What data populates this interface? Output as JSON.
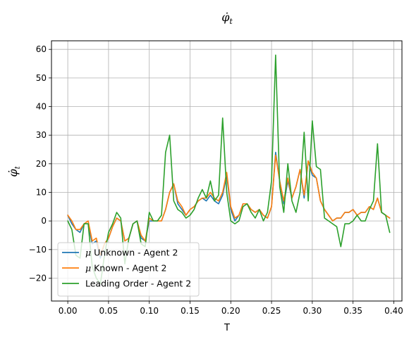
{
  "chart_data": {
    "type": "line",
    "title": "φ̇_t",
    "title_main": "φ̇",
    "title_sub": "t",
    "xlabel": "T",
    "ylabel": "φ̇_t",
    "ylabel_main": "φ̇",
    "ylabel_sub": "t",
    "xlim": [
      -0.02,
      0.41
    ],
    "ylim": [
      -28,
      63
    ],
    "xticks": [
      0.0,
      0.05,
      0.1,
      0.15,
      0.2,
      0.25,
      0.3,
      0.35,
      0.4
    ],
    "xtick_labels": [
      "0.00",
      "0.05",
      "0.10",
      "0.15",
      "0.20",
      "0.25",
      "0.30",
      "0.35",
      "0.40"
    ],
    "yticks": [
      -20,
      -10,
      0,
      10,
      20,
      30,
      40,
      50,
      60
    ],
    "ytick_labels": [
      "−20",
      "−10",
      "0",
      "10",
      "20",
      "30",
      "40",
      "50",
      "60"
    ],
    "grid": true,
    "legend_position": "lower-left",
    "series": [
      {
        "name": "μ Unknown - Agent 2",
        "legend_mu": "μ",
        "legend_rest": " Unknown - Agent 2",
        "color": "#1f77b4",
        "x": [
          0.0,
          0.005,
          0.01,
          0.015,
          0.02,
          0.025,
          0.03,
          0.035,
          0.04,
          0.045,
          0.05,
          0.055,
          0.06,
          0.065,
          0.07,
          0.075,
          0.08,
          0.085,
          0.09,
          0.095,
          0.1,
          0.105,
          0.11,
          0.115,
          0.12,
          0.125,
          0.13,
          0.135,
          0.14,
          0.145,
          0.15,
          0.155,
          0.16,
          0.165,
          0.17,
          0.175,
          0.18,
          0.185,
          0.19,
          0.195,
          0.2,
          0.205,
          0.21,
          0.215,
          0.22,
          0.225,
          0.23,
          0.235,
          0.24,
          0.245,
          0.25,
          0.255,
          0.26,
          0.265,
          0.27,
          0.275,
          0.28,
          0.285,
          0.29,
          0.295,
          0.3,
          0.305,
          0.31,
          0.315,
          0.32,
          0.325,
          0.33,
          0.335,
          0.34,
          0.345,
          0.35,
          0.355,
          0.36,
          0.365,
          0.37,
          0.375,
          0.38,
          0.385,
          0.39,
          0.395
        ],
        "values": [
          2,
          -1,
          -3,
          -4,
          -1,
          -1,
          -8,
          -7,
          -13,
          -8,
          -6,
          -2,
          1,
          0,
          -7,
          -6,
          -1,
          0,
          -6,
          -7,
          0,
          0,
          0,
          0,
          4,
          10,
          13,
          6,
          4,
          2,
          4,
          5,
          7,
          8,
          7,
          9,
          7,
          6,
          9,
          16,
          4,
          0,
          2,
          6,
          6,
          4,
          3,
          4,
          2,
          1,
          5,
          24,
          14,
          6,
          14,
          8,
          12,
          18,
          8,
          21,
          16,
          15,
          7,
          4,
          2,
          0,
          1,
          1,
          3,
          3,
          4,
          2,
          3,
          3,
          5,
          4,
          8,
          3,
          2,
          1
        ]
      },
      {
        "name": "μ Known - Agent 2",
        "legend_mu": "μ",
        "legend_rest": " Known - Agent 2",
        "color": "#ff7f0e",
        "x": [
          0.0,
          0.005,
          0.01,
          0.015,
          0.02,
          0.025,
          0.03,
          0.035,
          0.04,
          0.045,
          0.05,
          0.055,
          0.06,
          0.065,
          0.07,
          0.075,
          0.08,
          0.085,
          0.09,
          0.095,
          0.1,
          0.105,
          0.11,
          0.115,
          0.12,
          0.125,
          0.13,
          0.135,
          0.14,
          0.145,
          0.15,
          0.155,
          0.16,
          0.165,
          0.17,
          0.175,
          0.18,
          0.185,
          0.19,
          0.195,
          0.2,
          0.205,
          0.21,
          0.215,
          0.22,
          0.225,
          0.23,
          0.235,
          0.24,
          0.245,
          0.25,
          0.255,
          0.26,
          0.265,
          0.27,
          0.275,
          0.28,
          0.285,
          0.29,
          0.295,
          0.3,
          0.305,
          0.31,
          0.315,
          0.32,
          0.325,
          0.33,
          0.335,
          0.34,
          0.345,
          0.35,
          0.355,
          0.36,
          0.365,
          0.37,
          0.375,
          0.38,
          0.385,
          0.39,
          0.395
        ],
        "values": [
          2,
          0,
          -3,
          -3,
          -1,
          0,
          -7,
          -6,
          -12,
          -8,
          -6,
          -2,
          1,
          0,
          -7,
          -6,
          -1,
          0,
          -5,
          -7,
          1,
          0,
          0,
          0,
          4,
          10,
          13,
          7,
          5,
          2,
          4,
          5,
          7,
          8,
          8,
          10,
          8,
          7,
          10,
          17,
          5,
          1,
          2,
          6,
          6,
          4,
          3,
          4,
          2,
          1,
          5,
          23,
          14,
          7,
          15,
          8,
          12,
          18,
          9,
          21,
          17,
          15,
          7,
          4,
          2,
          0,
          1,
          1,
          3,
          3,
          4,
          2,
          3,
          3,
          5,
          4,
          8,
          3,
          2,
          1
        ]
      },
      {
        "name": "Leading Order - Agent 2",
        "legend_mu": "",
        "legend_rest": "Leading Order - Agent 2",
        "color": "#2ca02c",
        "x": [
          0.0,
          0.005,
          0.01,
          0.015,
          0.02,
          0.025,
          0.03,
          0.035,
          0.04,
          0.045,
          0.05,
          0.055,
          0.06,
          0.065,
          0.07,
          0.075,
          0.08,
          0.085,
          0.09,
          0.095,
          0.1,
          0.105,
          0.11,
          0.115,
          0.12,
          0.125,
          0.13,
          0.135,
          0.14,
          0.145,
          0.15,
          0.155,
          0.16,
          0.165,
          0.17,
          0.175,
          0.18,
          0.185,
          0.19,
          0.195,
          0.2,
          0.205,
          0.21,
          0.215,
          0.22,
          0.225,
          0.23,
          0.235,
          0.24,
          0.245,
          0.25,
          0.255,
          0.26,
          0.265,
          0.27,
          0.275,
          0.28,
          0.285,
          0.29,
          0.295,
          0.3,
          0.305,
          0.31,
          0.315,
          0.32,
          0.325,
          0.33,
          0.335,
          0.34,
          0.345,
          0.35,
          0.355,
          0.36,
          0.365,
          0.37,
          0.375,
          0.38,
          0.385,
          0.39,
          0.395
        ],
        "values": [
          0,
          -3,
          -12,
          -13,
          -1,
          -1,
          -16,
          -20,
          -22,
          -12,
          -4,
          -1,
          3,
          1,
          -15,
          -6,
          -1,
          0,
          -8,
          -9,
          3,
          0,
          0,
          2,
          24,
          30,
          7,
          4,
          3,
          1,
          2,
          4,
          8,
          11,
          8,
          14,
          7,
          9,
          36,
          10,
          0,
          -1,
          0,
          5,
          6,
          3,
          1,
          4,
          0,
          3,
          14,
          58,
          12,
          3,
          20,
          7,
          3,
          10,
          31,
          7,
          35,
          19,
          18,
          1,
          0,
          -1,
          -2,
          -9,
          -1,
          -1,
          0,
          2,
          0,
          0,
          4,
          7,
          27,
          3,
          2,
          -4
        ]
      }
    ]
  }
}
